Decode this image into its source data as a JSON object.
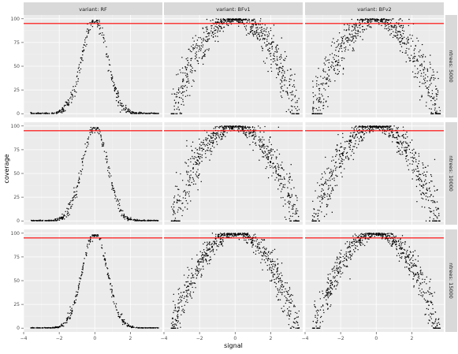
{
  "chart_data": {
    "type": "scatter",
    "xlabel": "signal",
    "ylabel": "coverage",
    "xlim": [
      -4,
      3.8
    ],
    "ylim": [
      -4,
      104
    ],
    "x_ticks": [
      -4,
      -2,
      0,
      2
    ],
    "y_ticks": [
      0,
      25,
      50,
      75,
      100
    ],
    "hline": {
      "y": 95,
      "color": "#ff0000"
    },
    "colors": {
      "points": "#000000",
      "panel": "#ebebeb",
      "strip": "#d9d9d9"
    },
    "facets": {
      "columns": [
        {
          "label": "variant: RF",
          "curve": "narrow",
          "sigma": 0.7,
          "n_points": 400
        },
        {
          "label": "variant: BFv1",
          "curve": "wide",
          "k": 8.3,
          "n_points": 700
        },
        {
          "label": "variant: BFv2",
          "curve": "wide",
          "k": 8.3,
          "n_points": 700
        }
      ],
      "rows": [
        {
          "label": "ntrees: 5000",
          "noise": 4
        },
        {
          "label": "ntrees: 10000",
          "noise": 3.5
        },
        {
          "label": "ntrees: 15000",
          "noise": 2.5
        }
      ]
    },
    "signal_range": [
      -3.6,
      3.6
    ],
    "series": [
      {
        "panel": "RF / ntrees: 5000",
        "x": [
          -3.6,
          -2.5,
          -2.0,
          -1.5,
          -1.0,
          -0.5,
          0,
          0.5,
          1.0,
          1.5,
          2.0,
          2.5,
          3.6
        ],
        "y": [
          0,
          0,
          2,
          10,
          36,
          77,
          100,
          77,
          36,
          10,
          2,
          0,
          0
        ]
      },
      {
        "panel": "BFv1 / ntrees: 5000",
        "x": [
          -3.6,
          -3.0,
          -2.0,
          -1.0,
          0,
          1.0,
          2.0,
          3.0,
          3.6
        ],
        "y": [
          15,
          33,
          70,
          90,
          100,
          90,
          70,
          33,
          15
        ]
      },
      {
        "panel": "BFv2 / ntrees: 5000",
        "x": [
          -3.6,
          -3.0,
          -2.0,
          -1.0,
          0,
          1.0,
          2.0,
          3.0,
          3.6
        ],
        "y": [
          15,
          33,
          70,
          90,
          100,
          90,
          70,
          33,
          15
        ]
      },
      {
        "panel": "RF / ntrees: 10000",
        "x": [
          -3.6,
          -2.5,
          -2.0,
          -1.5,
          -1.0,
          -0.5,
          0,
          0.5,
          1.0,
          1.5,
          2.0,
          2.5,
          3.6
        ],
        "y": [
          0,
          0,
          2,
          10,
          36,
          77,
          100,
          77,
          36,
          10,
          2,
          0,
          0
        ]
      },
      {
        "panel": "BFv1 / ntrees: 10000",
        "x": [
          -3.6,
          -3.0,
          -2.0,
          -1.0,
          0,
          1.0,
          2.0,
          3.0,
          3.6
        ],
        "y": [
          10,
          30,
          68,
          90,
          100,
          90,
          68,
          30,
          10
        ]
      },
      {
        "panel": "BFv2 / ntrees: 10000",
        "x": [
          -3.6,
          -3.0,
          -2.0,
          -1.0,
          0,
          1.0,
          2.0,
          3.0,
          3.6
        ],
        "y": [
          10,
          30,
          68,
          90,
          100,
          90,
          68,
          30,
          10
        ]
      },
      {
        "panel": "RF / ntrees: 15000",
        "x": [
          -3.6,
          -2.5,
          -2.0,
          -1.5,
          -1.0,
          -0.5,
          0,
          0.5,
          1.0,
          1.5,
          2.0,
          2.5,
          3.6
        ],
        "y": [
          0,
          0,
          2,
          10,
          36,
          77,
          97,
          77,
          36,
          10,
          2,
          0,
          0
        ]
      },
      {
        "panel": "BFv1 / ntrees: 15000",
        "x": [
          -3.6,
          -3.0,
          -2.0,
          -1.0,
          0,
          1.0,
          2.0,
          3.0,
          3.6
        ],
        "y": [
          8,
          28,
          66,
          90,
          100,
          90,
          66,
          28,
          8
        ]
      },
      {
        "panel": "BFv2 / ntrees: 15000",
        "x": [
          -3.6,
          -3.0,
          -2.0,
          -1.0,
          0,
          1.0,
          2.0,
          3.0,
          3.6
        ],
        "y": [
          8,
          28,
          66,
          90,
          100,
          90,
          66,
          28,
          8
        ]
      }
    ]
  }
}
